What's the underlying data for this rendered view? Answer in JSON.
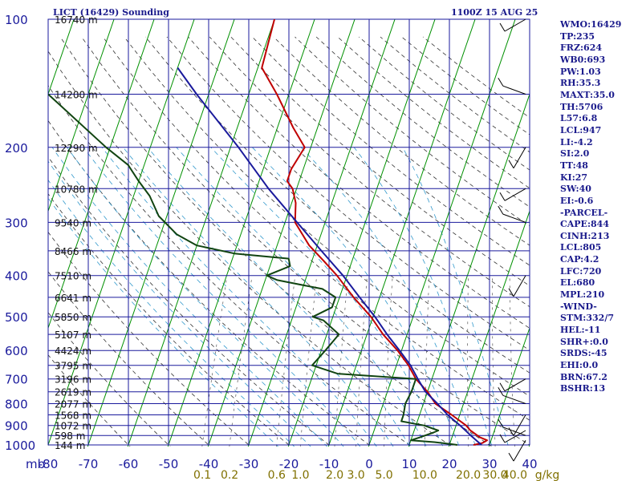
{
  "chart_data": {
    "type": "line",
    "title": "LICT (16429) Sounding",
    "valid_time": "1100Z 15 AUG 25",
    "x_axis": {
      "unit_label": "mb",
      "temperature_ticks": [
        "-80",
        "-70",
        "-60",
        "-50",
        "-40",
        "-30",
        "-20",
        "-10",
        "0",
        "10",
        "20",
        "30",
        "40"
      ],
      "xlim": [
        -80,
        40
      ]
    },
    "y_axis": {
      "pressure_ticks": [
        "100",
        "200",
        "300",
        "400",
        "500",
        "600",
        "700",
        "800",
        "900",
        "1000"
      ],
      "ylim": [
        1000,
        100
      ],
      "scale": "log"
    },
    "mixing_ratio_labels": [
      "0.1",
      "0.2",
      "0.6",
      "1.0",
      "2.0",
      "3.0",
      "5.0",
      "10.0",
      "20.0",
      "30.0",
      "40.0"
    ],
    "mixing_ratio_unit": "g/kg",
    "heights": [
      {
        "p": 1000,
        "label": "144 m"
      },
      {
        "p": 950,
        "label": "598 m"
      },
      {
        "p": 900,
        "label": "1072 m"
      },
      {
        "p": 850,
        "label": "1568 m"
      },
      {
        "p": 800,
        "label": "2077 m"
      },
      {
        "p": 750,
        "label": "2619 m"
      },
      {
        "p": 700,
        "label": "3196 m"
      },
      {
        "p": 650,
        "label": "3795 m"
      },
      {
        "p": 600,
        "label": "4424 m"
      },
      {
        "p": 550,
        "label": "5107 m"
      },
      {
        "p": 500,
        "label": "5850 m"
      },
      {
        "p": 450,
        "label": "6641 m"
      },
      {
        "p": 400,
        "label": "7510 m"
      },
      {
        "p": 350,
        "label": "8466 m"
      },
      {
        "p": 300,
        "label": "9540 m"
      },
      {
        "p": 250,
        "label": "10780 m"
      },
      {
        "p": 200,
        "label": "12290 m"
      },
      {
        "p": 150,
        "label": "14200 m"
      },
      {
        "p": 100,
        "label": "16740 m"
      }
    ],
    "series": [
      {
        "key": "temperature",
        "color": "#c00000",
        "points": [
          [
            1000,
            26
          ],
          [
            990,
            28
          ],
          [
            975,
            29
          ],
          [
            960,
            27
          ],
          [
            925,
            24
          ],
          [
            900,
            22.5
          ],
          [
            850,
            18
          ],
          [
            800,
            13
          ],
          [
            750,
            10
          ],
          [
            700,
            6
          ],
          [
            650,
            3
          ],
          [
            600,
            -1
          ],
          [
            550,
            -6
          ],
          [
            500,
            -10.5
          ],
          [
            450,
            -16.5
          ],
          [
            400,
            -22.5
          ],
          [
            370,
            -27
          ],
          [
            340,
            -32
          ],
          [
            300,
            -37.5
          ],
          [
            270,
            -39
          ],
          [
            250,
            -41
          ],
          [
            240,
            -43
          ],
          [
            225,
            -43
          ],
          [
            200,
            -41.5
          ],
          [
            180,
            -46
          ],
          [
            150,
            -53
          ],
          [
            130,
            -59
          ],
          [
            100,
            -60
          ]
        ]
      },
      {
        "key": "dewpoint",
        "color": "#114411",
        "points": [
          [
            1000,
            22
          ],
          [
            995,
            20
          ],
          [
            985,
            16
          ],
          [
            975,
            10
          ],
          [
            960,
            12
          ],
          [
            935,
            15
          ],
          [
            925,
            16
          ],
          [
            900,
            12
          ],
          [
            880,
            6
          ],
          [
            850,
            6
          ],
          [
            800,
            5.5
          ],
          [
            750,
            6
          ],
          [
            700,
            6
          ],
          [
            680,
            -14
          ],
          [
            650,
            -21
          ],
          [
            600,
            -19
          ],
          [
            550,
            -17
          ],
          [
            510,
            -22
          ],
          [
            500,
            -25
          ],
          [
            475,
            -21
          ],
          [
            450,
            -21
          ],
          [
            430,
            -25
          ],
          [
            410,
            -37
          ],
          [
            400,
            -40
          ],
          [
            380,
            -35
          ],
          [
            365,
            -36
          ],
          [
            355,
            -50
          ],
          [
            340,
            -60
          ],
          [
            320,
            -66
          ],
          [
            290,
            -72
          ],
          [
            260,
            -76
          ],
          [
            240,
            -80
          ],
          [
            220,
            -84
          ],
          [
            200,
            -91
          ],
          [
            150,
            -110
          ]
        ]
      },
      {
        "key": "parcel",
        "color": "#1a1a9c",
        "points": [
          [
            1000,
            28
          ],
          [
            950,
            24.5
          ],
          [
            900,
            21
          ],
          [
            850,
            17
          ],
          [
            800,
            13.5
          ],
          [
            750,
            9.5
          ],
          [
            700,
            6.5
          ],
          [
            650,
            3.5
          ],
          [
            600,
            -0.5
          ],
          [
            550,
            -5
          ],
          [
            500,
            -9.5
          ],
          [
            450,
            -15
          ],
          [
            400,
            -21
          ],
          [
            350,
            -28.5
          ],
          [
            300,
            -37
          ],
          [
            250,
            -47
          ],
          [
            200,
            -58
          ],
          [
            150,
            -73
          ],
          [
            130,
            -80
          ]
        ]
      }
    ],
    "indices": [
      "WMO:16429",
      "TP:235",
      "FRZ:624",
      "WB0:693",
      "PW:1.03",
      "RH:35.3",
      "MAXT:35.0",
      "TH:5706",
      "L57:6.8",
      "LCL:947",
      "LI:-4.2",
      "SI:2.0",
      "TT:48",
      "KI:27",
      "SW:40",
      "EI:-0.6",
      "-PARCEL-",
      "CAPE:844",
      "CINH:213",
      "LCL:805",
      "CAP:4.2",
      "LFC:720",
      "EL:680",
      "MPL:210",
      "-WIND-",
      "STM:332/7",
      "HEL:-11",
      "SHR+:0.0",
      "SRDS:-45",
      "EHI:0.0",
      "BRN:67.2",
      "BSHR:13"
    ],
    "grid": true,
    "colors": {
      "grid": "#1a1a9c",
      "isotherm": "#009000",
      "dry_adiabat": "#333333",
      "moist_adiabat": "#3399cc",
      "mixing_ratio": "#555555",
      "wind_barbs": "#000000",
      "mixing_ratio_label": "#807000"
    }
  }
}
